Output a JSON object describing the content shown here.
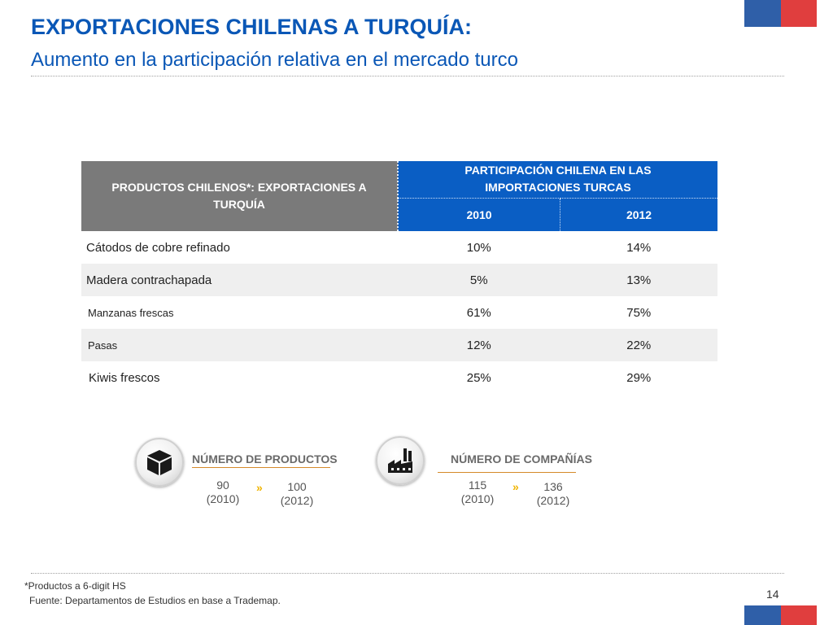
{
  "header": {
    "title": "EXPORTACIONES CHILENAS A TURQUÍA:",
    "subtitle": "Aumento en la participación relativa en el mercado turco"
  },
  "table": {
    "col_products": "PRODUCTOS CHILENOS*: EXPORTACIONES A TURQUÍA",
    "col_participation": "PARTICIPACIÓN CHILENA EN LAS IMPORTACIONES TURCAS",
    "years": [
      "2010",
      "2012"
    ],
    "rows": [
      {
        "product": "Cátodos de cobre refinado",
        "v2010": "10%",
        "v2012": "14%"
      },
      {
        "product": "Madera contrachapada",
        "v2010": "5%",
        "v2012": "13%"
      },
      {
        "product": "Manzanas frescas",
        "v2010": "61%",
        "v2012": "75%"
      },
      {
        "product": "Pasas",
        "v2010": "12%",
        "v2012": "22%"
      },
      {
        "product": "Kiwis frescos",
        "v2010": "25%",
        "v2012": "29%"
      }
    ]
  },
  "stats": {
    "products": {
      "label": "NÚMERO DE PRODUCTOS",
      "from_value": "90",
      "from_year": "(2010)",
      "to_value": "100",
      "to_year": "(2012)",
      "arrow": "»",
      "icon": "box-icon"
    },
    "companies": {
      "label": "NÚMERO DE COMPAÑÍAS",
      "from_value": "115",
      "from_year": "(2010)",
      "to_value": "136",
      "to_year": "(2012)",
      "arrow": "»",
      "icon": "factory-icon"
    }
  },
  "footer": {
    "footnote": "*Productos a 6-digit HS",
    "source": "Fuente: Departamentos de Estudios en base a Trademap.",
    "page_number": "14"
  },
  "colors": {
    "title_blue": "#0a57b6",
    "header_blue": "#0a5ec4",
    "header_gray": "#7a7a7a",
    "flag_blue": "#2f5fa8",
    "flag_red": "#e03e3e",
    "accent_orange": "#d58a2a",
    "arrow_yellow": "#f0b400"
  }
}
